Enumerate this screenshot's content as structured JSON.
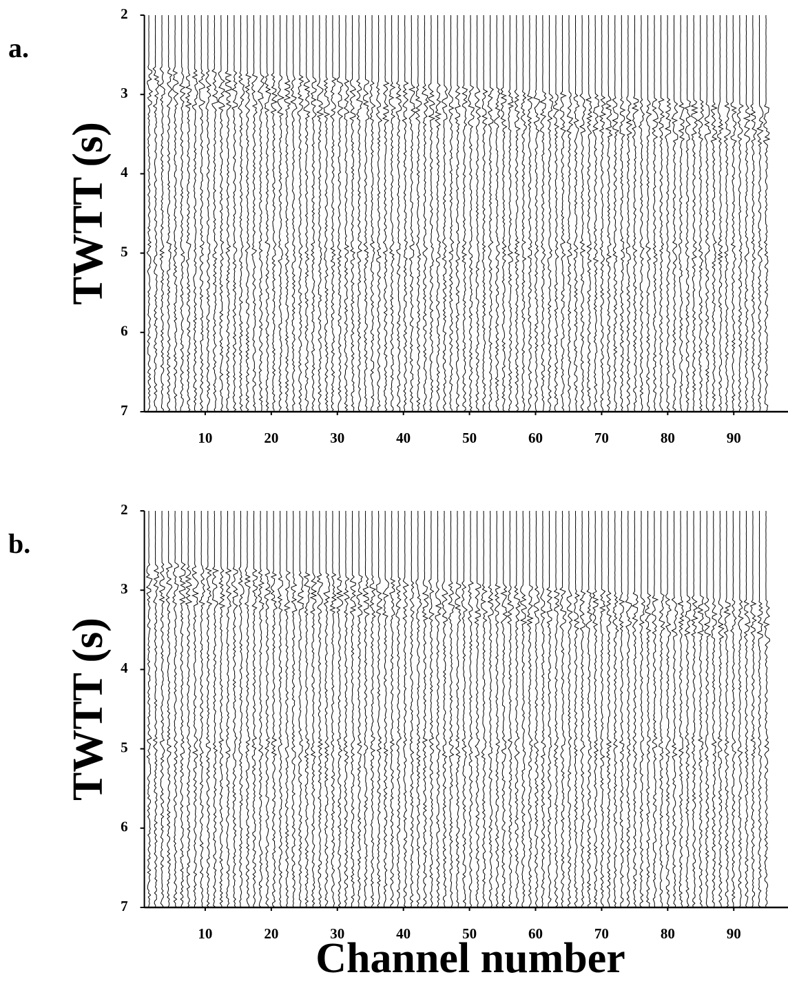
{
  "chart_data": [
    {
      "type": "seismic",
      "label": "a.",
      "ylabel": "TWTT (s)",
      "xlim": [
        1,
        98
      ],
      "xticks": [
        10,
        20,
        30,
        40,
        50,
        60,
        70,
        80,
        90
      ],
      "ylim": [
        7,
        2
      ],
      "yticks": [
        2,
        3,
        4,
        5,
        6,
        7
      ],
      "y_inverted": true
    },
    {
      "type": "seismic",
      "label": "b.",
      "ylabel": "TWTT (s)",
      "xlabel": "Channel number",
      "xlim": [
        1,
        98
      ],
      "xticks": [
        10,
        20,
        30,
        40,
        50,
        60,
        70,
        80,
        90
      ],
      "ylim": [
        7,
        2
      ],
      "yticks": [
        2,
        3,
        4,
        5,
        6,
        7
      ],
      "y_inverted": true
    }
  ]
}
